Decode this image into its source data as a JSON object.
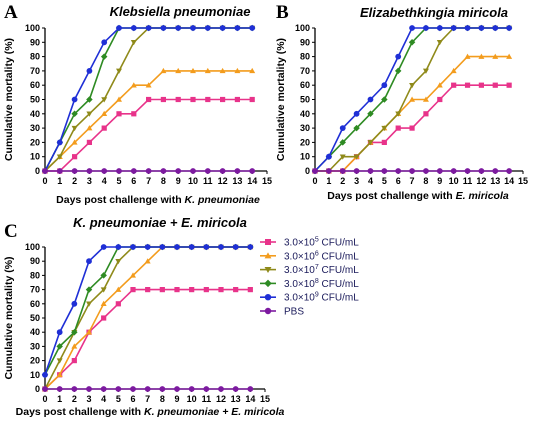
{
  "chart_data": [
    {
      "type": "line",
      "panel": "A",
      "title": "Klebsiella pneumoniae",
      "ylabel": "Cumulative mortality (%)",
      "xlabel_plain": "Days post challenge with ",
      "xlabel_italic": "K. pneumoniae",
      "xlim": [
        0,
        15
      ],
      "ylim": [
        0,
        100
      ],
      "xticks": [
        "0",
        "1",
        "2",
        "3",
        "4",
        "5",
        "6",
        "7",
        "8",
        "9",
        "10",
        "11",
        "12",
        "13",
        "14",
        "15"
      ],
      "yticks": [
        "0",
        "10",
        "20",
        "30",
        "40",
        "50",
        "60",
        "70",
        "80",
        "90",
        "100"
      ],
      "x": [
        0,
        1,
        2,
        3,
        4,
        5,
        6,
        7,
        8,
        9,
        10,
        11,
        12,
        13,
        14
      ],
      "series": [
        {
          "key": "s1",
          "values": [
            0,
            0,
            10,
            20,
            30,
            40,
            40,
            50,
            50,
            50,
            50,
            50,
            50,
            50,
            50
          ]
        },
        {
          "key": "s2",
          "values": [
            0,
            10,
            20,
            30,
            40,
            50,
            60,
            60,
            70,
            70,
            70,
            70,
            70,
            70,
            70
          ]
        },
        {
          "key": "s3",
          "values": [
            0,
            10,
            30,
            40,
            50,
            70,
            90,
            100,
            100,
            100,
            100,
            100,
            100,
            100,
            100
          ]
        },
        {
          "key": "s4",
          "values": [
            0,
            20,
            40,
            50,
            80,
            100,
            100,
            100,
            100,
            100,
            100,
            100,
            100,
            100,
            100
          ]
        },
        {
          "key": "s5",
          "values": [
            0,
            20,
            50,
            70,
            90,
            100,
            100,
            100,
            100,
            100,
            100,
            100,
            100,
            100,
            100
          ]
        },
        {
          "key": "s6",
          "values": [
            0,
            0,
            0,
            0,
            0,
            0,
            0,
            0,
            0,
            0,
            0,
            0,
            0,
            0,
            0
          ]
        }
      ]
    },
    {
      "type": "line",
      "panel": "B",
      "title": "Elizabethkingia miricola",
      "ylabel": "Cumulative mortality (%)",
      "xlabel_plain": "Days post challenge with ",
      "xlabel_italic": "E. miricola",
      "xlim": [
        0,
        15
      ],
      "ylim": [
        0,
        100
      ],
      "xticks": [
        "0",
        "1",
        "2",
        "3",
        "4",
        "5",
        "6",
        "7",
        "8",
        "9",
        "10",
        "11",
        "12",
        "13",
        "14",
        "15"
      ],
      "yticks": [
        "0",
        "10",
        "20",
        "30",
        "40",
        "50",
        "60",
        "70",
        "80",
        "90",
        "100"
      ],
      "x": [
        0,
        1,
        2,
        3,
        4,
        5,
        6,
        7,
        8,
        9,
        10,
        11,
        12,
        13,
        14
      ],
      "series": [
        {
          "key": "s1",
          "values": [
            0,
            0,
            0,
            10,
            20,
            20,
            30,
            30,
            40,
            50,
            60,
            60,
            60,
            60,
            60
          ]
        },
        {
          "key": "s2",
          "values": [
            0,
            0,
            0,
            10,
            20,
            30,
            40,
            50,
            50,
            60,
            70,
            80,
            80,
            80,
            80
          ]
        },
        {
          "key": "s3",
          "values": [
            0,
            0,
            10,
            10,
            20,
            30,
            40,
            60,
            70,
            90,
            100,
            100,
            100,
            100,
            100
          ]
        },
        {
          "key": "s4",
          "values": [
            0,
            10,
            20,
            30,
            40,
            50,
            70,
            90,
            100,
            100,
            100,
            100,
            100,
            100,
            100
          ]
        },
        {
          "key": "s5",
          "values": [
            0,
            10,
            30,
            40,
            50,
            60,
            80,
            100,
            100,
            100,
            100,
            100,
            100,
            100,
            100
          ]
        },
        {
          "key": "s6",
          "values": [
            0,
            0,
            0,
            0,
            0,
            0,
            0,
            0,
            0,
            0,
            0,
            0,
            0,
            0,
            0
          ]
        }
      ]
    },
    {
      "type": "line",
      "panel": "C",
      "title": "K. pneumoniae + E. miricola",
      "ylabel": "Cumulative mortality (%)",
      "xlabel_plain": "Days post challenge with ",
      "xlabel_italic": "K. pneumoniae + E. miricola",
      "xlim": [
        0,
        15
      ],
      "ylim": [
        0,
        100
      ],
      "xticks": [
        "0",
        "1",
        "2",
        "3",
        "4",
        "5",
        "6",
        "7",
        "8",
        "9",
        "10",
        "11",
        "12",
        "13",
        "14",
        "15"
      ],
      "yticks": [
        "0",
        "10",
        "20",
        "30",
        "40",
        "50",
        "60",
        "70",
        "80",
        "90",
        "100"
      ],
      "x": [
        0,
        1,
        2,
        3,
        4,
        5,
        6,
        7,
        8,
        9,
        10,
        11,
        12,
        13,
        14
      ],
      "series": [
        {
          "key": "s1",
          "values": [
            0,
            10,
            20,
            40,
            50,
            60,
            70,
            70,
            70,
            70,
            70,
            70,
            70,
            70,
            70
          ]
        },
        {
          "key": "s2",
          "values": [
            0,
            10,
            30,
            40,
            60,
            70,
            80,
            90,
            100,
            100,
            100,
            100,
            100,
            100,
            100
          ]
        },
        {
          "key": "s3",
          "values": [
            0,
            20,
            40,
            60,
            70,
            90,
            100,
            100,
            100,
            100,
            100,
            100,
            100,
            100,
            100
          ]
        },
        {
          "key": "s4",
          "values": [
            10,
            30,
            40,
            70,
            80,
            100,
            100,
            100,
            100,
            100,
            100,
            100,
            100,
            100,
            100
          ]
        },
        {
          "key": "s5",
          "values": [
            10,
            40,
            60,
            90,
            100,
            100,
            100,
            100,
            100,
            100,
            100,
            100,
            100,
            100,
            100
          ]
        },
        {
          "key": "s6",
          "values": [
            0,
            0,
            0,
            0,
            0,
            0,
            0,
            0,
            0,
            0,
            0,
            0,
            0,
            0,
            0
          ]
        }
      ]
    }
  ],
  "legend": [
    {
      "key": "s1",
      "mantissa": "3.0",
      "times": "×",
      "base": "10",
      "exp": "5",
      "unit": " CFU/mL",
      "color": "#e8338a",
      "marker": "square"
    },
    {
      "key": "s2",
      "mantissa": "3.0",
      "times": "×",
      "base": "10",
      "exp": "6",
      "unit": " CFU/mL",
      "color": "#f39c1d",
      "marker": "triangle-up"
    },
    {
      "key": "s3",
      "mantissa": "3.0",
      "times": "×",
      "base": "10",
      "exp": "7",
      "unit": " CFU/mL",
      "color": "#8f8a1a",
      "marker": "triangle-down"
    },
    {
      "key": "s4",
      "mantissa": "3.0",
      "times": "×",
      "base": "10",
      "exp": "8",
      "unit": " CFU/mL",
      "color": "#2e8b23",
      "marker": "diamond"
    },
    {
      "key": "s5",
      "mantissa": "3.0",
      "times": "×",
      "base": "10",
      "exp": "9",
      "unit": " CFU/mL",
      "color": "#1f2fd6",
      "marker": "circle"
    },
    {
      "key": "s6",
      "label": "PBS",
      "color": "#7d1aa0",
      "marker": "circle"
    }
  ]
}
